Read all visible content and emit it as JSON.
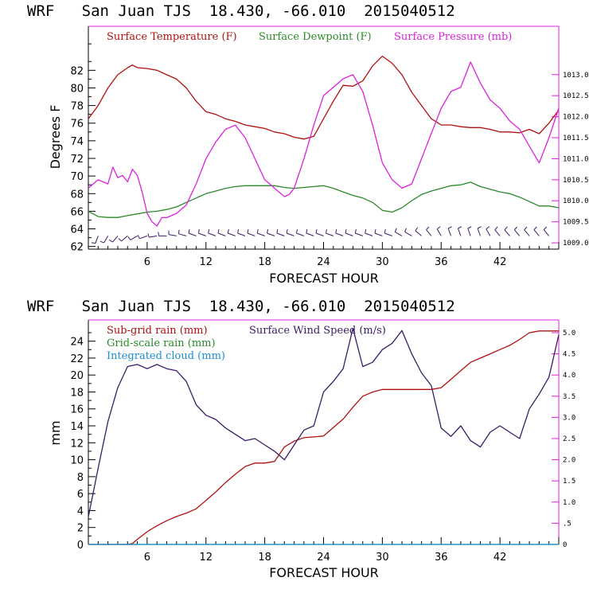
{
  "chart_data": [
    {
      "type": "line",
      "title": "WRF   San Juan TJS  18.430, -66.010  2015040512",
      "xlabel": "FORECAST HOUR",
      "ylabel": "Degrees F",
      "xlim": [
        0,
        48
      ],
      "ylim": [
        61.7,
        87
      ],
      "y2lim": [
        1008.85,
        1014.15
      ],
      "x_ticks": [
        6,
        12,
        18,
        24,
        30,
        36,
        42
      ],
      "x_tick_labels": [
        "6",
        "12",
        "18",
        "24",
        "30",
        "36",
        "42"
      ],
      "y_ticks": [
        62,
        64,
        66,
        68,
        70,
        72,
        74,
        76,
        78,
        80,
        82
      ],
      "y_tick_labels": [
        "62",
        "64",
        "66",
        "68",
        "70",
        "72",
        "74",
        "76",
        "78",
        "80",
        "82"
      ],
      "y2_ticks": [
        1009.0,
        1009.5,
        1010.0,
        1010.5,
        1011.0,
        1011.5,
        1012.0,
        1012.5,
        1013.0
      ],
      "y2_tick_labels": [
        "1009.0",
        "1009.5",
        "1010.0",
        "1010.5",
        "1011.0",
        "1011.5",
        "1012.0",
        "1012.5",
        "1013.0"
      ],
      "grid": false,
      "legend_position": "top-left",
      "series": [
        {
          "name": "Surface Temperature (F)",
          "color": "#b01010",
          "axis": "left",
          "x": [
            0,
            1,
            2,
            3,
            4,
            4.5,
            5,
            6,
            7,
            8,
            9,
            10,
            11,
            12,
            13,
            14,
            15,
            16,
            17,
            18,
            19,
            20,
            21,
            22,
            23,
            24,
            25,
            26,
            27,
            28,
            29,
            30,
            31,
            32,
            33,
            34,
            35,
            36,
            37,
            38,
            39,
            40,
            41,
            42,
            43,
            44,
            45,
            46,
            47,
            48
          ],
          "y": [
            76.5,
            78.0,
            80.0,
            81.5,
            82.3,
            82.6,
            82.3,
            82.2,
            82.0,
            81.5,
            81.0,
            80.0,
            78.5,
            77.3,
            77.0,
            76.5,
            76.2,
            75.8,
            75.6,
            75.4,
            75.0,
            74.8,
            74.4,
            74.2,
            74.5,
            76.5,
            78.5,
            80.3,
            80.2,
            80.8,
            82.5,
            83.6,
            82.8,
            81.5,
            79.5,
            78.0,
            76.5,
            75.8,
            75.8,
            75.6,
            75.5,
            75.5,
            75.3,
            75.0,
            75.0,
            74.9,
            75.3,
            74.8,
            76.0,
            77.5
          ]
        },
        {
          "name": "Surface Dewpoint (F)",
          "color": "#2a8a2a",
          "axis": "left",
          "x": [
            0,
            1,
            2,
            3,
            4,
            5,
            6,
            7,
            8,
            9,
            10,
            11,
            12,
            13,
            14,
            15,
            16,
            17,
            18,
            19,
            20,
            21,
            22,
            23,
            24,
            25,
            26,
            27,
            28,
            29,
            30,
            31,
            32,
            33,
            34,
            35,
            36,
            37,
            38,
            39,
            40,
            41,
            42,
            43,
            44,
            45,
            46,
            47,
            48
          ],
          "y": [
            66.0,
            65.4,
            65.3,
            65.3,
            65.5,
            65.7,
            65.9,
            66.0,
            66.2,
            66.5,
            67.0,
            67.5,
            68.0,
            68.3,
            68.6,
            68.8,
            68.9,
            68.9,
            68.9,
            68.9,
            68.7,
            68.6,
            68.7,
            68.8,
            68.9,
            68.6,
            68.2,
            67.8,
            67.5,
            67.0,
            66.1,
            65.9,
            66.4,
            67.2,
            67.9,
            68.3,
            68.6,
            68.9,
            69.0,
            69.3,
            68.8,
            68.5,
            68.2,
            68.0,
            67.6,
            67.1,
            66.6,
            66.6,
            66.4
          ]
        },
        {
          "name": "Surface Pressure (mb)",
          "color": "#dd20dd",
          "axis": "right",
          "x": [
            0,
            1,
            2,
            2.5,
            3,
            3.5,
            4,
            4.5,
            5,
            5.5,
            6,
            6.5,
            7,
            7.5,
            8,
            9,
            10,
            11,
            12,
            13,
            14,
            15,
            16,
            17,
            18,
            19,
            20,
            20.5,
            21,
            22,
            23,
            24,
            25,
            26,
            27,
            28,
            29,
            30,
            31,
            32,
            33,
            34,
            35,
            36,
            37,
            38,
            39,
            40,
            41,
            42,
            43,
            44,
            45,
            46,
            47,
            48
          ],
          "y": [
            1010.3,
            1010.5,
            1010.4,
            1010.8,
            1010.55,
            1010.6,
            1010.45,
            1010.75,
            1010.6,
            1010.2,
            1009.7,
            1009.5,
            1009.4,
            1009.6,
            1009.6,
            1009.7,
            1009.9,
            1010.4,
            1011.0,
            1011.4,
            1011.7,
            1011.8,
            1011.5,
            1011.0,
            1010.5,
            1010.3,
            1010.1,
            1010.15,
            1010.3,
            1011.0,
            1011.8,
            1012.5,
            1012.7,
            1012.9,
            1013.0,
            1012.6,
            1011.8,
            1010.9,
            1010.5,
            1010.3,
            1010.4,
            1011.0,
            1011.6,
            1012.2,
            1012.6,
            1012.7,
            1013.3,
            1012.8,
            1012.4,
            1012.2,
            1011.9,
            1011.7,
            1011.3,
            1010.9,
            1011.5,
            1012.2
          ]
        }
      ],
      "wind_barbs": {
        "y_level": 63.2,
        "x": [
          1,
          2,
          3,
          4,
          5,
          6,
          7,
          8,
          9,
          10,
          11,
          12,
          13,
          14,
          15,
          16,
          17,
          18,
          19,
          20,
          21,
          22,
          23,
          24,
          25,
          26,
          27,
          28,
          29,
          30,
          31,
          32,
          33,
          34,
          35,
          36,
          37,
          38,
          39,
          40,
          41,
          42,
          43,
          44,
          45,
          46,
          47
        ],
        "direction_deg": [
          200,
          210,
          220,
          230,
          240,
          250,
          260,
          270,
          280,
          285,
          290,
          290,
          290,
          290,
          290,
          290,
          290,
          290,
          290,
          290,
          290,
          290,
          290,
          290,
          290,
          290,
          290,
          290,
          290,
          290,
          290,
          300,
          300,
          310,
          320,
          330,
          340,
          340,
          340,
          340,
          330,
          320,
          320,
          320,
          320,
          320,
          320
        ]
      }
    },
    {
      "type": "line",
      "title": "WRF   San Juan TJS  18.430, -66.010  2015040512",
      "xlabel": "FORECAST HOUR",
      "ylabel": "mm",
      "xlim": [
        0,
        48
      ],
      "ylim": [
        0,
        26.5
      ],
      "y2lim": [
        0,
        5.3
      ],
      "x_ticks": [
        6,
        12,
        18,
        24,
        30,
        36,
        42
      ],
      "x_tick_labels": [
        "6",
        "12",
        "18",
        "24",
        "30",
        "36",
        "42"
      ],
      "y_ticks": [
        0,
        2,
        4,
        6,
        8,
        10,
        12,
        14,
        16,
        18,
        20,
        22,
        24
      ],
      "y_tick_labels": [
        "0",
        "2",
        "4",
        "6",
        "8",
        "10",
        "12",
        "14",
        "16",
        "18",
        "20",
        "22",
        "24"
      ],
      "y2_ticks": [
        0,
        0.5,
        1.0,
        1.5,
        2.0,
        2.5,
        3.0,
        3.5,
        4.0,
        4.5,
        5.0
      ],
      "y2_tick_labels": [
        "0",
        ".5",
        "1.0",
        "1.5",
        "2.0",
        "2.5",
        "3.0",
        "3.5",
        "4.0",
        "4.5",
        "5.0"
      ],
      "grid": false,
      "legend_position": "top-left",
      "series": [
        {
          "name": "Sub-grid rain (mm)",
          "color": "#b01010",
          "axis": "left",
          "x": [
            0,
            4,
            4.5,
            5,
            6,
            7,
            8,
            9,
            10,
            11,
            12,
            13,
            14,
            15,
            16,
            17,
            18,
            19,
            20,
            21,
            22,
            23,
            24,
            25,
            26,
            27,
            28,
            29,
            30,
            31,
            32,
            33,
            34,
            35,
            36,
            37,
            38,
            39,
            40,
            41,
            42,
            43,
            44,
            45,
            46,
            47,
            48
          ],
          "y": [
            0,
            0,
            0.1,
            0.6,
            1.5,
            2.2,
            2.8,
            3.3,
            3.7,
            4.2,
            5.2,
            6.2,
            7.3,
            8.3,
            9.2,
            9.6,
            9.6,
            9.8,
            11.5,
            12.2,
            12.6,
            12.7,
            12.8,
            13.8,
            14.8,
            16.2,
            17.5,
            18.0,
            18.3,
            18.3,
            18.3,
            18.3,
            18.3,
            18.3,
            18.5,
            19.5,
            20.5,
            21.5,
            22.0,
            22.5,
            23.0,
            23.5,
            24.2,
            25.0,
            25.2,
            25.2,
            25.2
          ]
        },
        {
          "name": "Grid-scale rain (mm)",
          "color": "#2a8a2a",
          "axis": "left",
          "x": [
            0,
            48
          ],
          "y": [
            0,
            0
          ]
        },
        {
          "name": "Integrated cloud (mm)",
          "color": "#1a8ed8",
          "axis": "left",
          "x": [
            0,
            48
          ],
          "y": [
            0,
            0
          ]
        },
        {
          "name": "Surface Wind Speed (m/s)",
          "color": "#3a1c66",
          "axis": "right",
          "x": [
            0,
            1,
            2,
            3,
            4,
            5,
            6,
            7,
            8,
            9,
            10,
            11,
            12,
            13,
            14,
            15,
            16,
            17,
            18,
            19,
            20,
            21,
            22,
            23,
            24,
            25,
            26,
            27,
            28,
            29,
            30,
            31,
            32,
            33,
            34,
            35,
            36,
            37,
            38,
            39,
            40,
            41,
            42,
            43,
            44,
            45,
            46,
            47,
            48
          ],
          "y": [
            0.65,
            1.8,
            2.9,
            3.7,
            4.2,
            4.25,
            4.15,
            4.25,
            4.15,
            4.1,
            3.85,
            3.3,
            3.05,
            2.95,
            2.75,
            2.6,
            2.45,
            2.5,
            2.35,
            2.2,
            2.0,
            2.35,
            2.7,
            2.8,
            3.6,
            3.85,
            4.15,
            5.1,
            4.2,
            4.3,
            4.6,
            4.75,
            5.05,
            4.5,
            4.05,
            3.75,
            2.75,
            2.55,
            2.8,
            2.45,
            2.3,
            2.65,
            2.8,
            2.65,
            2.5,
            3.2,
            3.55,
            3.95,
            4.95
          ]
        }
      ]
    }
  ]
}
